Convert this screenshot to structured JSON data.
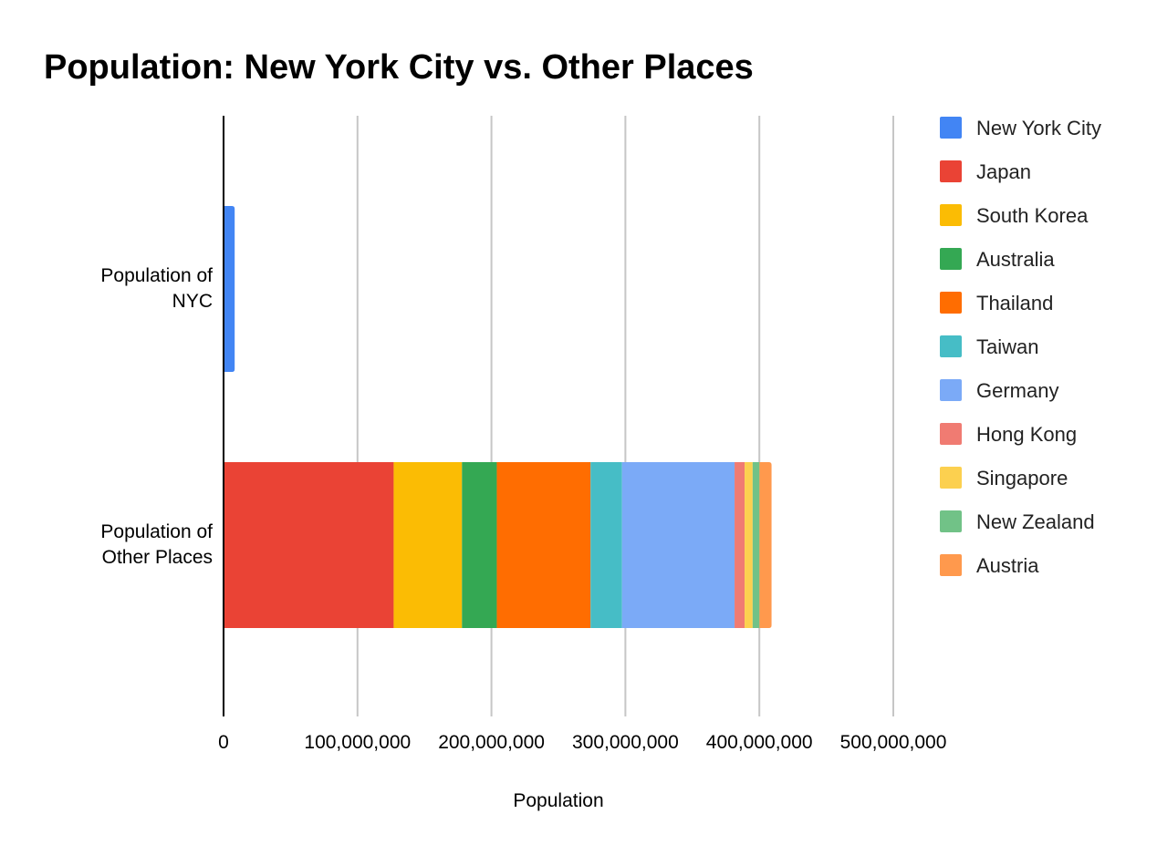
{
  "chart_data": {
    "type": "bar",
    "orientation": "horizontal",
    "stacked": true,
    "title": "Population: New York City vs. Other Places",
    "xlabel": "Population",
    "ylabel": "",
    "xlim": [
      0,
      500000000
    ],
    "x_ticks": [
      0,
      100000000,
      200000000,
      300000000,
      400000000,
      500000000
    ],
    "x_tick_labels": [
      "0",
      "100,000,000",
      "200,000,000",
      "300,000,000",
      "400,000,000",
      "500,000,000"
    ],
    "categories": [
      [
        "Population of",
        "NYC"
      ],
      [
        "Population of",
        "Other Places"
      ]
    ],
    "grid": true,
    "legend_position": "right",
    "series": [
      {
        "name": "New York City",
        "color": "#4285f4",
        "values": [
          8300000,
          0
        ]
      },
      {
        "name": "Japan",
        "color": "#ea4335",
        "values": [
          0,
          127000000
        ]
      },
      {
        "name": "South Korea",
        "color": "#fbbc04",
        "values": [
          0,
          51000000
        ]
      },
      {
        "name": "Australia",
        "color": "#34a853",
        "values": [
          0,
          26000000
        ]
      },
      {
        "name": "Thailand",
        "color": "#ff6d01",
        "values": [
          0,
          70000000
        ]
      },
      {
        "name": "Taiwan",
        "color": "#46bdc6",
        "values": [
          0,
          23500000
        ]
      },
      {
        "name": "Germany",
        "color": "#7baaf7",
        "values": [
          0,
          84000000
        ]
      },
      {
        "name": "Hong Kong",
        "color": "#f07b72",
        "values": [
          0,
          7500000
        ]
      },
      {
        "name": "Singapore",
        "color": "#fcd04f",
        "values": [
          0,
          6000000
        ]
      },
      {
        "name": "New Zealand",
        "color": "#71c287",
        "values": [
          0,
          5100000
        ]
      },
      {
        "name": "Austria",
        "color": "#ff994d",
        "values": [
          0,
          9000000
        ]
      }
    ]
  }
}
